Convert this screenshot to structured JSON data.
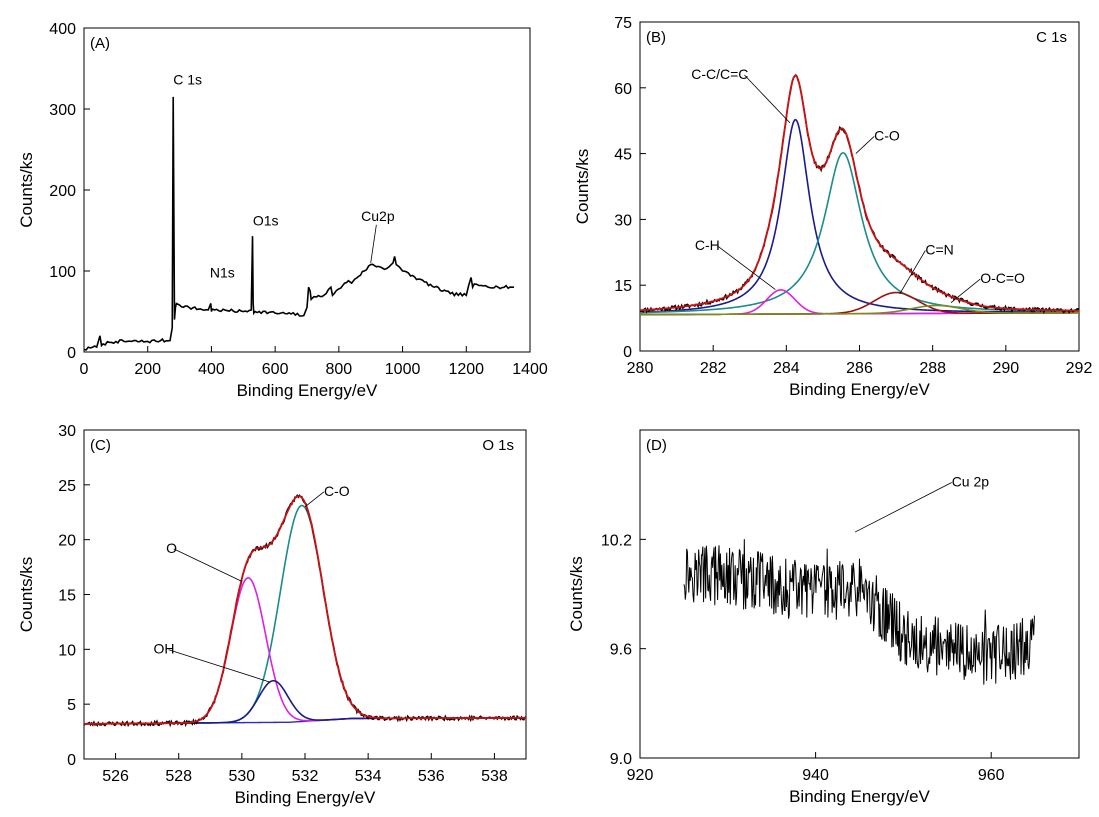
{
  "chart_data": [
    {
      "id": "A",
      "type": "line",
      "panel_label": "(A)",
      "corner_label": "",
      "xlabel": "Binding Energy/eV",
      "ylabel": "Counts/ks",
      "xlim": [
        0,
        1400
      ],
      "ylim": [
        0,
        400
      ],
      "xticks": [
        0,
        200,
        400,
        600,
        800,
        1000,
        1200,
        1400
      ],
      "yticks": [
        0,
        100,
        200,
        300,
        400
      ],
      "series": [
        {
          "color": "#000000",
          "x": [
            0,
            20,
            40,
            50,
            55,
            60,
            80,
            100,
            150,
            200,
            240,
            270,
            277,
            280,
            284,
            287,
            290,
            300,
            330,
            360,
            390,
            398,
            400,
            402,
            410,
            450,
            500,
            525,
            529,
            531,
            533,
            537,
            550,
            600,
            650,
            690,
            700,
            705,
            710,
            713,
            730,
            760,
            775,
            780,
            785,
            800,
            830,
            840,
            850,
            880,
            900,
            930,
            950,
            970,
            975,
            980,
            990,
            1000,
            1050,
            1100,
            1150,
            1200,
            1215,
            1220,
            1225,
            1240,
            1260,
            1300,
            1350
          ],
          "y": [
            3,
            5,
            6,
            20,
            8,
            10,
            12,
            13,
            13,
            13,
            14,
            14,
            30,
            315,
            40,
            55,
            60,
            58,
            55,
            53,
            52,
            60,
            50,
            53,
            52,
            51,
            50,
            52,
            143,
            60,
            48,
            50,
            50,
            48,
            47,
            45,
            55,
            80,
            75,
            65,
            68,
            72,
            80,
            70,
            72,
            78,
            88,
            85,
            90,
            100,
            108,
            105,
            103,
            110,
            118,
            108,
            105,
            100,
            90,
            80,
            72,
            70,
            92,
            80,
            84,
            82,
            82,
            80,
            80
          ]
        }
      ],
      "annotations": [
        {
          "text": "C 1s",
          "x": 280,
          "y": 330
        },
        {
          "text": "N1s",
          "x": 395,
          "y": 92
        },
        {
          "text": "O1s",
          "x": 530,
          "y": 156
        },
        {
          "text": "Cu2p",
          "x": 870,
          "y": 162,
          "pointer": [
            900,
            110
          ]
        }
      ]
    },
    {
      "id": "B",
      "type": "line",
      "panel_label": "(B)",
      "corner_label": "C 1s",
      "xlabel": "Binding Energy/eV",
      "ylabel": "Counts/ks",
      "xlim": [
        280,
        292
      ],
      "ylim": [
        0,
        75
      ],
      "xticks": [
        280,
        282,
        284,
        286,
        288,
        290,
        292
      ],
      "yticks": [
        0,
        15,
        30,
        45,
        60,
        75
      ],
      "baseline": [
        [
          280,
          8.3
        ],
        [
          292,
          8.7
        ]
      ],
      "components": [
        {
          "label": "C-C/C=C",
          "color": "#1a1a8c",
          "center": 284.25,
          "height": 44.3,
          "fwhm": 0.95,
          "shape": "lorentz"
        },
        {
          "label": "C-O",
          "color": "#1a8c8c",
          "center": 285.55,
          "height": 36.7,
          "fwhm": 1.25,
          "shape": "lorentz"
        },
        {
          "label": "C-H",
          "color": "#e020e0",
          "center": 283.85,
          "height": 5.5,
          "fwhm": 0.9,
          "shape": "gauss"
        },
        {
          "label": "C=N",
          "color": "#a01010",
          "center": 287.0,
          "height": 4.8,
          "fwhm": 1.4,
          "shape": "gauss"
        },
        {
          "label": "O-C=O",
          "color": "#7a8c1a",
          "center": 288.1,
          "height": 1.8,
          "fwhm": 1.6,
          "shape": "gauss"
        }
      ],
      "envelope_color": "#d01010",
      "data_color": "#000000",
      "annotations": [
        {
          "text": "C-C/C=C",
          "x": 281.4,
          "y": 62.0,
          "pointer": [
            284.1,
            52
          ]
        },
        {
          "text": "C-O",
          "x": 286.4,
          "y": 48.0,
          "pointer": [
            285.9,
            45
          ]
        },
        {
          "text": "C-H",
          "x": 281.5,
          "y": 23.0,
          "pointer": [
            283.7,
            14
          ]
        },
        {
          "text": "C=N",
          "x": 287.8,
          "y": 22.0,
          "pointer": [
            287.1,
            13
          ]
        },
        {
          "text": "O-C=O",
          "x": 289.3,
          "y": 15.5,
          "pointer": [
            288.5,
            11
          ]
        }
      ]
    },
    {
      "id": "C",
      "type": "line",
      "panel_label": "(C)",
      "corner_label": "O 1s",
      "xlabel": "Binding Energy/eV",
      "ylabel": "Counts/ks",
      "xlim": [
        525,
        539
      ],
      "ylim": [
        0,
        30
      ],
      "xticks": [
        526,
        528,
        530,
        532,
        534,
        536,
        538
      ],
      "yticks": [
        0,
        5,
        10,
        15,
        20,
        25,
        30
      ],
      "baseline": [
        [
          525,
          3.2
        ],
        [
          531.5,
          3.35
        ],
        [
          533.5,
          3.7
        ],
        [
          539,
          3.75
        ]
      ],
      "components": [
        {
          "label": "C-O",
          "color": "#1a8c8c",
          "center": 531.9,
          "height": 19.7,
          "fwhm": 1.6,
          "shape": "gauss"
        },
        {
          "label": "O",
          "color": "#e020e0",
          "center": 530.2,
          "height": 13.2,
          "fwhm": 1.3,
          "shape": "gauss"
        },
        {
          "label": "OH",
          "color": "#1a1a8c",
          "center": 531.0,
          "height": 3.8,
          "fwhm": 1.1,
          "shape": "gauss"
        }
      ],
      "envelope_color": "#d01010",
      "data_color": "#000000",
      "annotations": [
        {
          "text": "C-O",
          "x": 532.6,
          "y": 24.0,
          "pointer": [
            532.0,
            23
          ]
        },
        {
          "text": "O",
          "x": 527.6,
          "y": 18.8,
          "pointer": [
            530.0,
            16.2
          ]
        },
        {
          "text": "OH",
          "x": 527.2,
          "y": 9.6,
          "pointer": [
            530.9,
            7.0
          ]
        }
      ]
    },
    {
      "id": "D",
      "type": "line",
      "panel_label": "(D)",
      "corner_label": "",
      "xlabel": "Binding Energy/eV",
      "ylabel": "Counts/ks",
      "xlim": [
        920,
        970
      ],
      "ylim": [
        9.0,
        10.8
      ],
      "xticks": [
        920,
        940,
        960
      ],
      "yticks": [
        9.0,
        9.6,
        10.2
      ],
      "trend": [
        [
          925,
          10.03
        ],
        [
          935,
          9.95
        ],
        [
          940,
          9.9
        ],
        [
          945,
          9.93
        ],
        [
          950,
          9.68
        ],
        [
          955,
          9.58
        ],
        [
          960,
          9.55
        ],
        [
          965,
          9.62
        ]
      ],
      "noise": 0.17,
      "color": "#000000",
      "annotations": [
        {
          "text": "Cu 2p",
          "x": 955.5,
          "y": 10.49,
          "pointer": [
            944.5,
            10.24
          ]
        }
      ]
    }
  ]
}
